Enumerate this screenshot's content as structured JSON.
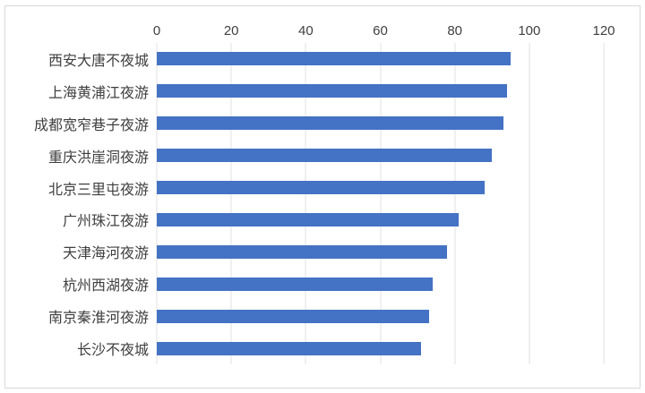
{
  "chart_data": {
    "type": "bar",
    "orientation": "horizontal",
    "title": "",
    "categories": [
      "西安大唐不夜城",
      "上海黄浦江夜游",
      "成都宽窄巷子夜游",
      "重庆洪崖洞夜游",
      "北京三里屯夜游",
      "广州珠江夜游",
      "天津海河夜游",
      "杭州西湖夜游",
      "南京秦淮河夜游",
      "长沙不夜城"
    ],
    "values": [
      95,
      94,
      93,
      90,
      88,
      81,
      78,
      74,
      73,
      71
    ],
    "xlim": [
      0,
      120
    ],
    "xticks": [
      0,
      20,
      40,
      60,
      80,
      100,
      120
    ],
    "xlabel": "",
    "ylabel": "",
    "grid": "vertical-only",
    "legend": "none"
  },
  "colors": {
    "bar": "#4472c4",
    "gridline": "#e0e0e0",
    "tick_text": "#404040",
    "category_text": "#3f3f3f",
    "frame_border": "#d9d9d9",
    "background": "#ffffff"
  }
}
